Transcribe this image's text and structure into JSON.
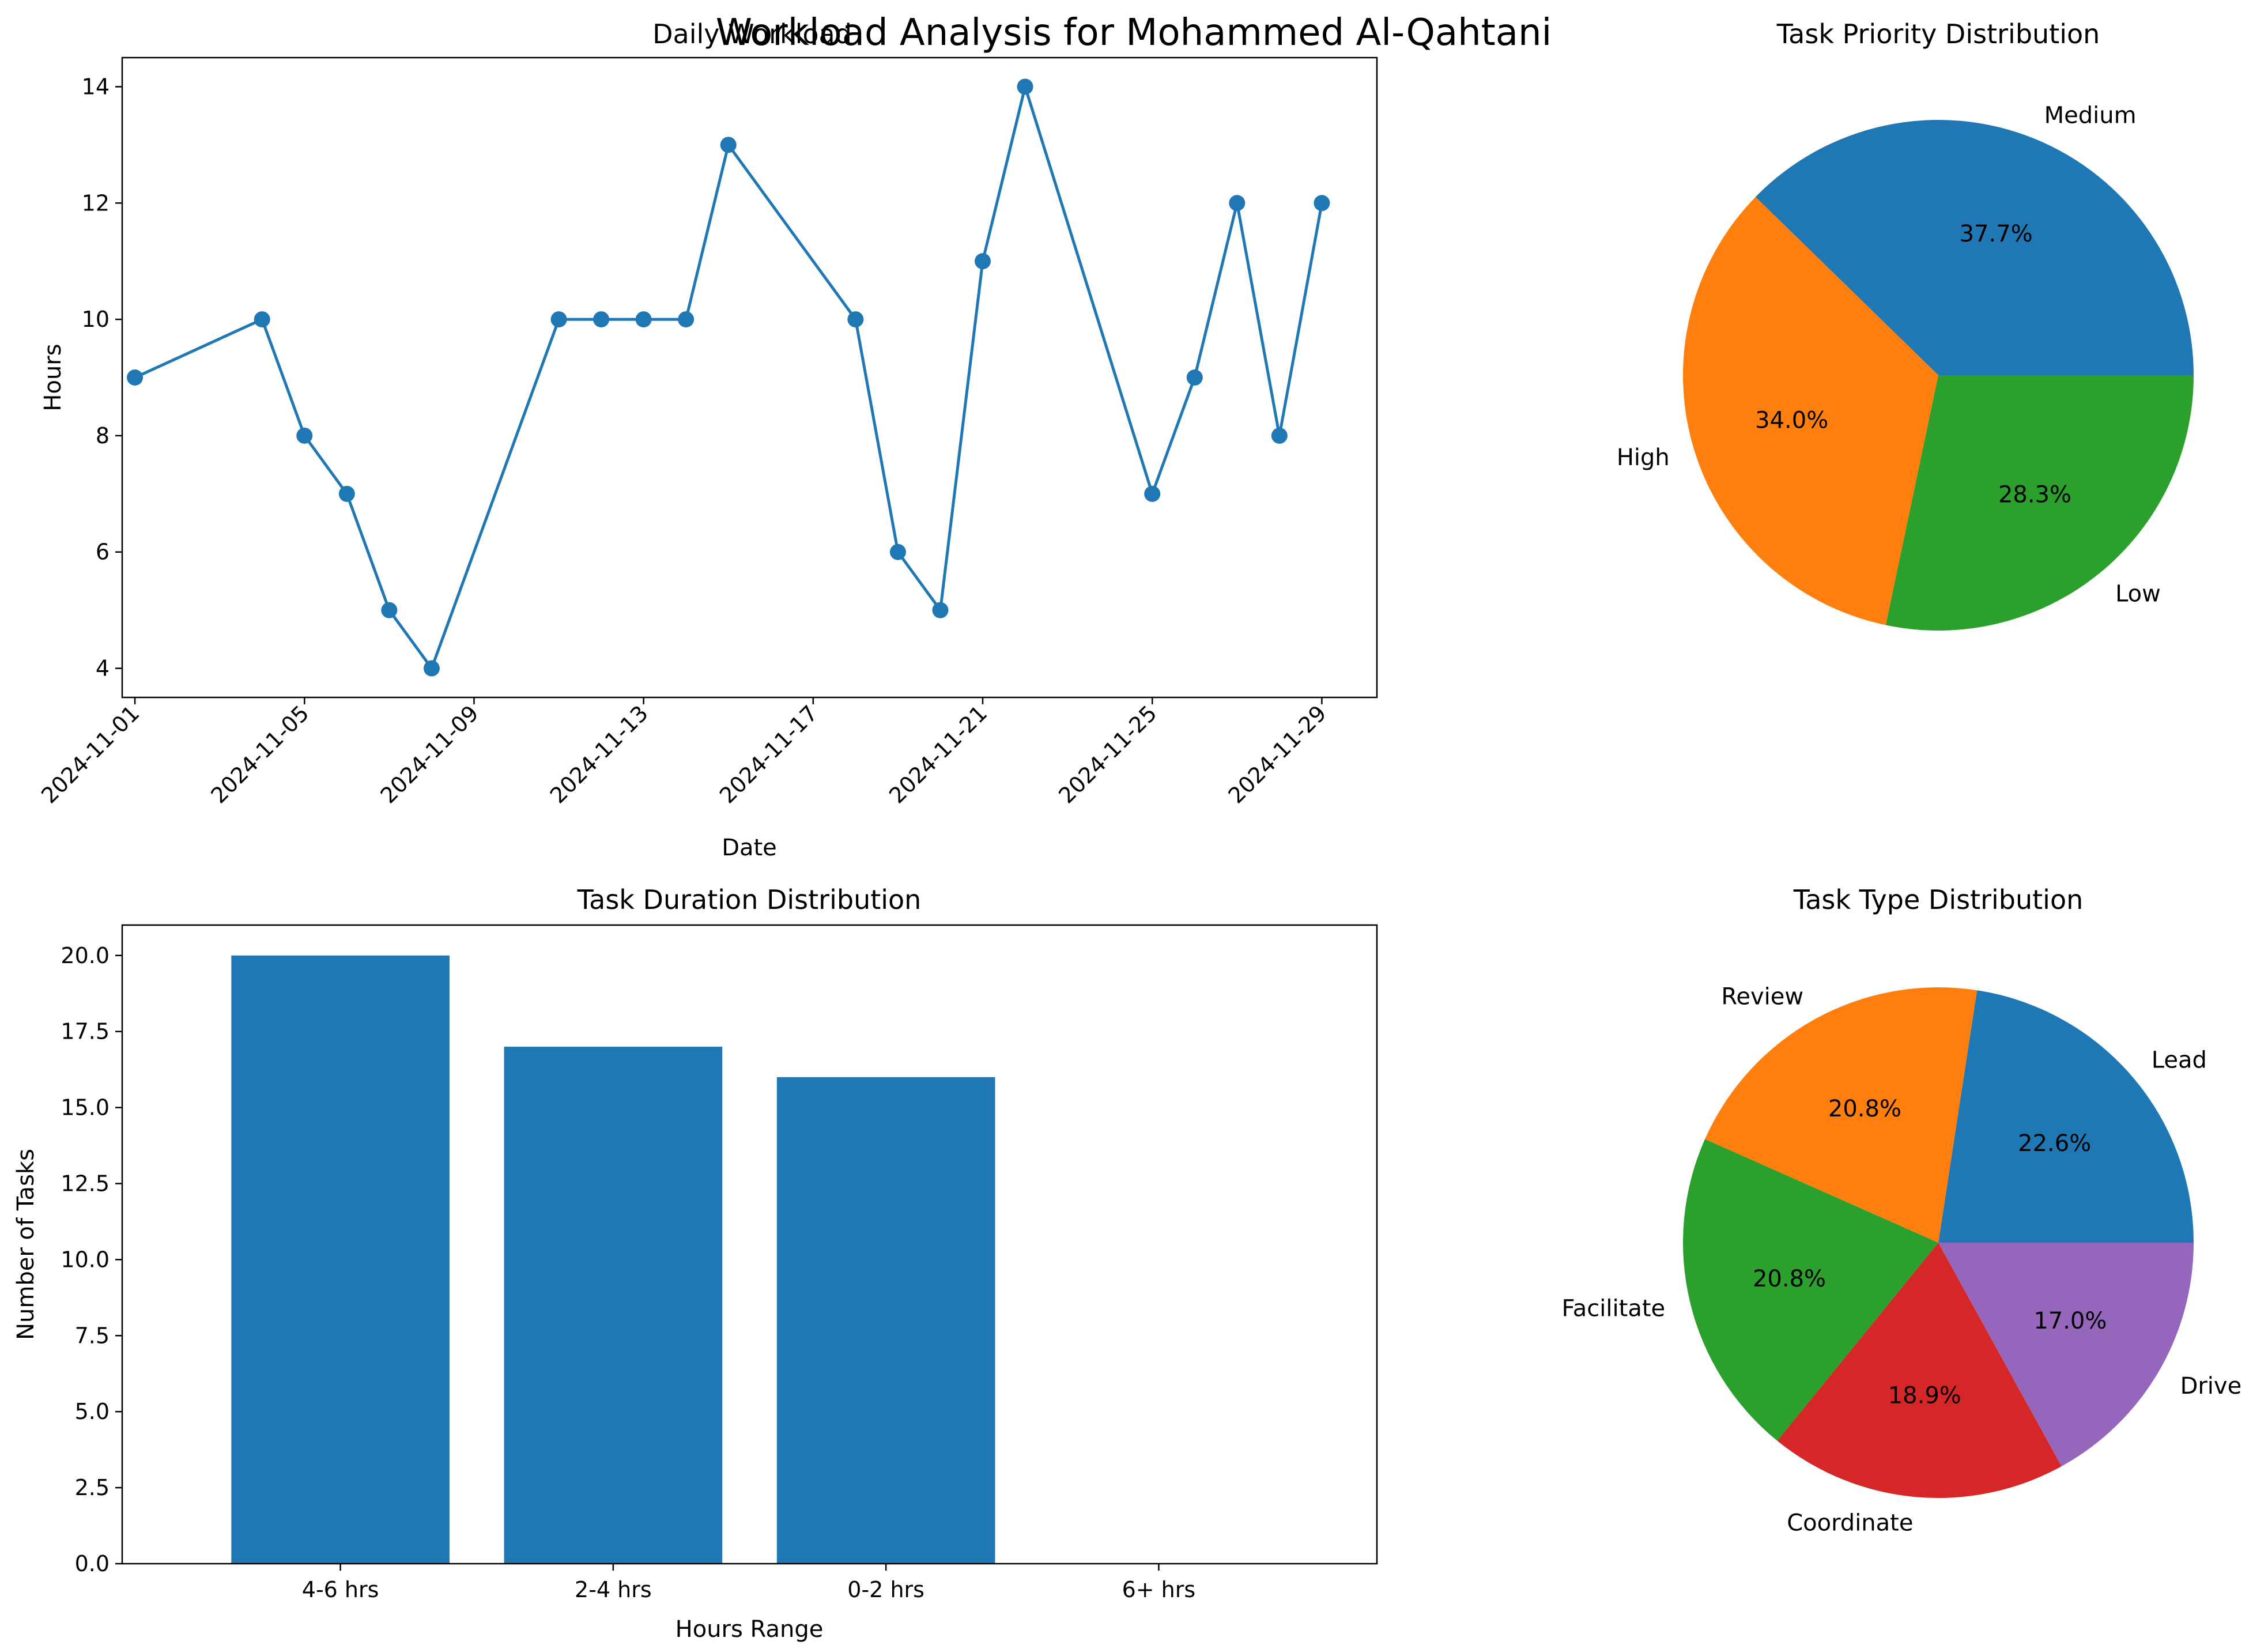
{
  "suptitle": "Workload Analysis for Mohammed Al-Qahtani",
  "colors": {
    "line": "#1f77b4",
    "bar": "#1f77b4",
    "pie_palette": [
      "#1f77b4",
      "#ff7f0e",
      "#2ca02c",
      "#d62728",
      "#9467bd"
    ]
  },
  "chart_data": [
    {
      "type": "line",
      "title": "Daily Workload",
      "xlabel": "Date",
      "ylabel": "Hours",
      "x": [
        "2024-11-01",
        "2024-11-04",
        "2024-11-05",
        "2024-11-06",
        "2024-11-07",
        "2024-11-08",
        "2024-11-11",
        "2024-11-12",
        "2024-11-13",
        "2024-11-14",
        "2024-11-15",
        "2024-11-18",
        "2024-11-19",
        "2024-11-20",
        "2024-11-21",
        "2024-11-22",
        "2024-11-25",
        "2024-11-26",
        "2024-11-27",
        "2024-11-28",
        "2024-11-29"
      ],
      "y": [
        9,
        10,
        8,
        7,
        5,
        4,
        10,
        10,
        10,
        10,
        13,
        10,
        6,
        5,
        11,
        14,
        7,
        9,
        12,
        8,
        12
      ],
      "x_ticks": [
        "2024-11-01",
        "2024-11-05",
        "2024-11-09",
        "2024-11-13",
        "2024-11-17",
        "2024-11-21",
        "2024-11-25",
        "2024-11-29"
      ],
      "y_ticks": [
        "4",
        "6",
        "8",
        "10",
        "12",
        "14"
      ],
      "ylim": [
        3.5,
        14.5
      ],
      "xlim": [
        "2024-10-31T16:48",
        "2024-11-30T07:12"
      ],
      "marker": "circle",
      "grid": false
    },
    {
      "type": "pie",
      "title": "Task Priority Distribution",
      "labels": [
        "Medium",
        "High",
        "Low"
      ],
      "values": [
        37.7,
        34.0,
        28.3
      ],
      "percent_labels": [
        "37.7%",
        "34.0%",
        "28.3%"
      ]
    },
    {
      "type": "bar",
      "title": "Task Duration Distribution",
      "xlabel": "Hours Range",
      "ylabel": "Number of Tasks",
      "categories": [
        "4-6 hrs",
        "2-4 hrs",
        "0-2 hrs",
        "6+ hrs"
      ],
      "values": [
        20,
        17,
        16,
        0
      ],
      "y_ticks": [
        "0.0",
        "2.5",
        "5.0",
        "7.5",
        "10.0",
        "12.5",
        "15.0",
        "17.5",
        "20.0"
      ],
      "ylim": [
        0,
        21
      ]
    },
    {
      "type": "pie",
      "title": "Task Type Distribution",
      "labels": [
        "Lead",
        "Review",
        "Facilitate",
        "Coordinate",
        "Drive"
      ],
      "values": [
        22.6,
        20.8,
        20.8,
        18.9,
        17.0
      ],
      "percent_labels": [
        "22.6%",
        "20.8%",
        "20.8%",
        "18.9%",
        "17.0%"
      ]
    }
  ]
}
